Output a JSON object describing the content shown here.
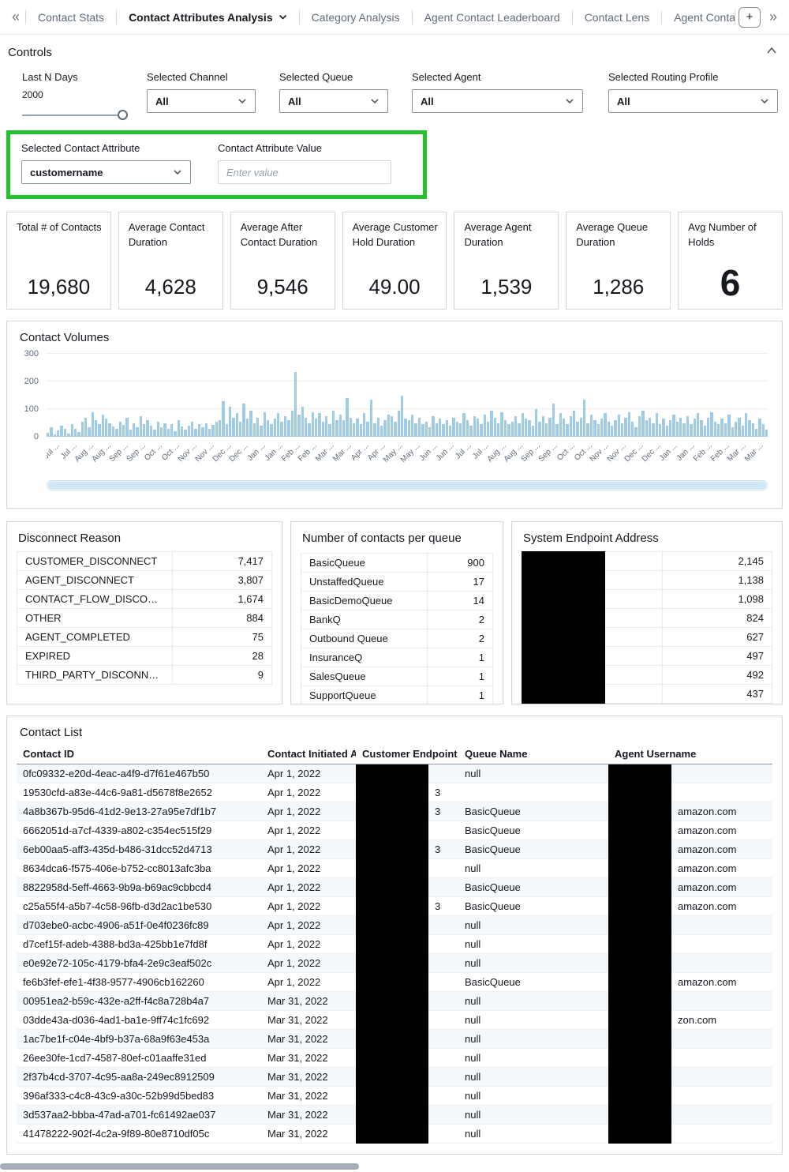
{
  "colors": {
    "accent_green": "#26c22d",
    "bar_blue": "#9fcbe5",
    "scrollbar_blue": "#cfe6f5"
  },
  "icons": {
    "scroll_tabs_left": "«",
    "scroll_tabs_right": "»",
    "add_sheet": "+"
  },
  "tabbar": {
    "tabs": [
      {
        "label": "Contact Stats",
        "active": false
      },
      {
        "label": "Contact Attributes Analysis",
        "active": true
      },
      {
        "label": "Category Analysis",
        "active": false
      },
      {
        "label": "Agent Contact Leaderboard",
        "active": false
      },
      {
        "label": "Contact Lens",
        "active": false
      },
      {
        "label": "Agent ContactLens",
        "active": false
      }
    ]
  },
  "controls": {
    "title": "Controls",
    "last_n_days": {
      "label": "Last N Days",
      "value": "2000"
    },
    "channel": {
      "label": "Selected Channel",
      "value": "All"
    },
    "queue": {
      "label": "Selected Queue",
      "value": "All"
    },
    "agent": {
      "label": "Selected Agent",
      "value": "All"
    },
    "routing_profile": {
      "label": "Selected Routing Profile",
      "value": "All"
    },
    "contact_attribute": {
      "label": "Selected Contact Attribute",
      "value": "customername"
    },
    "attribute_value": {
      "label": "Contact Attribute Value",
      "placeholder": "Enter value"
    }
  },
  "kpis": [
    {
      "title": "Total # of Contacts",
      "value": "19,680",
      "emphasis": false
    },
    {
      "title": "Average Contact Duration",
      "value": "4,628",
      "emphasis": false
    },
    {
      "title": "Average After Contact Duration",
      "value": "9,546",
      "emphasis": false
    },
    {
      "title": "Average Customer Hold Duration",
      "value": "49.00",
      "emphasis": false
    },
    {
      "title": "Average Agent Duration",
      "value": "1,539",
      "emphasis": false
    },
    {
      "title": "Average Queue Duration",
      "value": "1,286",
      "emphasis": false
    },
    {
      "title": "Avg Number of Holds",
      "value": "6",
      "emphasis": true
    }
  ],
  "chart_data": {
    "type": "bar",
    "title": "Contact Volumes",
    "xlabel": "",
    "ylabel": "",
    "ylim": [
      0,
      300
    ],
    "yticks": [
      0,
      100,
      200,
      300
    ],
    "grid": true,
    "legend": "none",
    "x_tick_labels": [
      "Jul ...",
      "Jul ...",
      "Aug ...",
      "Aug ...",
      "Sep ...",
      "Sep ...",
      "Oct ...",
      "Oct ...",
      "Nov ...",
      "Nov ...",
      "Dec ...",
      "Dec ...",
      "Jan ...",
      "Jan ...",
      "Feb ...",
      "Feb ...",
      "Mar ...",
      "Mar ...",
      "Apr ...",
      "Apr ...",
      "May ...",
      "May ...",
      "Jun ...",
      "Jun ...",
      "Jul ...",
      "Jul ...",
      "Aug ...",
      "Aug ...",
      "Sep ...",
      "Sep ...",
      "Oct ...",
      "Oct ...",
      "Nov ...",
      "Nov ...",
      "Dec ...",
      "Dec ...",
      "Jan ...",
      "Jan ...",
      "Feb ...",
      "Feb ...",
      "Mar ...",
      "Mar ..."
    ],
    "values": [
      15,
      35,
      8,
      22,
      40,
      28,
      12,
      45,
      30,
      18,
      55,
      70,
      35,
      90,
      60,
      45,
      80,
      65,
      50,
      38,
      30,
      55,
      42,
      68,
      25,
      50,
      35,
      75,
      45,
      60,
      40,
      25,
      55,
      35,
      48,
      30,
      45,
      20,
      60,
      38,
      25,
      40,
      55,
      30,
      45,
      35,
      50,
      28,
      42,
      55,
      60,
      130,
      45,
      110,
      70,
      85,
      55,
      120,
      65,
      95,
      50,
      70,
      40,
      90,
      60,
      45,
      65,
      85,
      55,
      75,
      60,
      95,
      235,
      80,
      110,
      70,
      50,
      90,
      65,
      85,
      55,
      75,
      45,
      95,
      60,
      80,
      60,
      140,
      70,
      50,
      65,
      45,
      85,
      55,
      135,
      50,
      70,
      40,
      60,
      80,
      75,
      55,
      95,
      150,
      65,
      60,
      80,
      50,
      70,
      45,
      55,
      35,
      75,
      50,
      65,
      45,
      60,
      40,
      70,
      55,
      50,
      85,
      60,
      40,
      75,
      65,
      45,
      80,
      55,
      95,
      70,
      50,
      90,
      60,
      45,
      55,
      75,
      48,
      85,
      65,
      60,
      40,
      100,
      55,
      75,
      50,
      70,
      120,
      45,
      85,
      65,
      45,
      75,
      95,
      55,
      70,
      135,
      50,
      80,
      60,
      45,
      65,
      85,
      55,
      40,
      60,
      80,
      50,
      70,
      90,
      55,
      35,
      75,
      95,
      60,
      70,
      50,
      85,
      45,
      65,
      40,
      60,
      80,
      55,
      70,
      50,
      75,
      45,
      65,
      85,
      60,
      40,
      70,
      90,
      55,
      45,
      65,
      50,
      80,
      35,
      55,
      70,
      40,
      85,
      60,
      50,
      30,
      65,
      45,
      25
    ]
  },
  "disconnect_reason": {
    "title": "Disconnect Reason",
    "rows": [
      [
        "CUSTOMER_DISCONNECT",
        "7,417"
      ],
      [
        "AGENT_DISCONNECT",
        "3,807"
      ],
      [
        "CONTACT_FLOW_DISCONN...",
        "1,674"
      ],
      [
        "OTHER",
        "884"
      ],
      [
        "AGENT_COMPLETED",
        "75"
      ],
      [
        "EXPIRED",
        "28"
      ],
      [
        "THIRD_PARTY_DISCONNECT",
        "9"
      ]
    ]
  },
  "contacts_per_queue": {
    "title": "Number of contacts per queue",
    "rows": [
      [
        "BasicQueue",
        "900"
      ],
      [
        "UnstaffedQueue",
        "17"
      ],
      [
        "BasicDemoQueue",
        "14"
      ],
      [
        "BankQ",
        "2"
      ],
      [
        "Outbound Queue",
        "2"
      ],
      [
        "InsuranceQ",
        "1"
      ],
      [
        "SalesQueue",
        "1"
      ],
      [
        "SupportQueue",
        "1"
      ]
    ]
  },
  "system_endpoint": {
    "title": "System Endpoint Address",
    "values": [
      "2,145",
      "1,138",
      "1,098",
      "824",
      "627",
      "497",
      "492",
      "437"
    ]
  },
  "contact_list": {
    "title": "Contact List",
    "columns": [
      "Contact ID",
      "Contact Initiated At",
      "Customer Endpoint",
      "Queue Name",
      "Agent Username"
    ],
    "rows": [
      {
        "contact_id": "0fc09332-e20d-4eac-a4f9-d7f61e467b50",
        "initiated_at": "Apr 1, 2022",
        "customer_endpoint_visible": "",
        "queue_name": "null",
        "agent_username_visible": ""
      },
      {
        "contact_id": "19530cfd-a83e-44c6-9a81-d5678f8e2652",
        "initiated_at": "Apr 1, 2022",
        "customer_endpoint_visible": "3",
        "queue_name": "",
        "agent_username_visible": ""
      },
      {
        "contact_id": "4a8b367b-95d6-41d2-9e13-27a95e7df1b7",
        "initiated_at": "Apr 1, 2022",
        "customer_endpoint_visible": "3",
        "queue_name": "BasicQueue",
        "agent_username_visible": "amazon.com"
      },
      {
        "contact_id": "6662051d-a7cf-4339-a802-c354ec515f29",
        "initiated_at": "Apr 1, 2022",
        "customer_endpoint_visible": "",
        "queue_name": "BasicQueue",
        "agent_username_visible": "amazon.com"
      },
      {
        "contact_id": "6eb00aa5-aff3-435d-b486-31dcc52d4713",
        "initiated_at": "Apr 1, 2022",
        "customer_endpoint_visible": "3",
        "queue_name": "BasicQueue",
        "agent_username_visible": "amazon.com"
      },
      {
        "contact_id": "8634dca6-f575-406e-b752-cc8013afc3ba",
        "initiated_at": "Apr 1, 2022",
        "customer_endpoint_visible": "",
        "queue_name": "null",
        "agent_username_visible": "amazon.com"
      },
      {
        "contact_id": "8822958d-5eff-4663-9b9a-b69ac9cbbcd4",
        "initiated_at": "Apr 1, 2022",
        "customer_endpoint_visible": "",
        "queue_name": "BasicQueue",
        "agent_username_visible": "amazon.com"
      },
      {
        "contact_id": "c25a55f4-a5b7-4c58-96fb-d3d2ac1be530",
        "initiated_at": "Apr 1, 2022",
        "customer_endpoint_visible": "3",
        "queue_name": "BasicQueue",
        "agent_username_visible": "amazon.com"
      },
      {
        "contact_id": "d703ebe0-acbc-4906-a51f-0e4f0236fc89",
        "initiated_at": "Apr 1, 2022",
        "customer_endpoint_visible": "",
        "queue_name": "null",
        "agent_username_visible": ""
      },
      {
        "contact_id": "d7cef15f-adeb-4388-bd3a-425bb1e7fd8f",
        "initiated_at": "Apr 1, 2022",
        "customer_endpoint_visible": "",
        "queue_name": "null",
        "agent_username_visible": ""
      },
      {
        "contact_id": "e0e92e72-105c-4179-bfa4-2e9c3eaf502c",
        "initiated_at": "Apr 1, 2022",
        "customer_endpoint_visible": "",
        "queue_name": "null",
        "agent_username_visible": ""
      },
      {
        "contact_id": "fe6b3fef-efe1-4f38-9577-4906cb162260",
        "initiated_at": "Apr 1, 2022",
        "customer_endpoint_visible": "",
        "queue_name": "BasicQueue",
        "agent_username_visible": "amazon.com"
      },
      {
        "contact_id": "00951ea2-b59c-432e-a2ff-f4c8a728b4a7",
        "initiated_at": "Mar 31, 2022",
        "customer_endpoint_visible": "",
        "queue_name": "null",
        "agent_username_visible": ""
      },
      {
        "contact_id": "03dde43a-d036-4ad1-ba1e-9ff74c1fc692",
        "initiated_at": "Mar 31, 2022",
        "customer_endpoint_visible": "",
        "queue_name": "null",
        "agent_username_visible": "zon.com"
      },
      {
        "contact_id": "1ac7be1f-c04e-4bf9-b37a-68a9f63e453a",
        "initiated_at": "Mar 31, 2022",
        "customer_endpoint_visible": "",
        "queue_name": "null",
        "agent_username_visible": ""
      },
      {
        "contact_id": "26ee30fe-1cd7-4587-80ef-c01aaffe31ed",
        "initiated_at": "Mar 31, 2022",
        "customer_endpoint_visible": "",
        "queue_name": "null",
        "agent_username_visible": ""
      },
      {
        "contact_id": "2f37b4cd-3707-4c95-aa8a-249ec8912509",
        "initiated_at": "Mar 31, 2022",
        "customer_endpoint_visible": "",
        "queue_name": "null",
        "agent_username_visible": ""
      },
      {
        "contact_id": "396af333-c4c8-43c9-a30c-52b99d5bed83",
        "initiated_at": "Mar 31, 2022",
        "customer_endpoint_visible": "",
        "queue_name": "null",
        "agent_username_visible": ""
      },
      {
        "contact_id": "3d537aa2-bbba-47ad-a701-fc61492ae037",
        "initiated_at": "Mar 31, 2022",
        "customer_endpoint_visible": "",
        "queue_name": "null",
        "agent_username_visible": ""
      },
      {
        "contact_id": "41478222-902f-4c2a-9f89-80e8710df05c",
        "initiated_at": "Mar 31, 2022",
        "customer_endpoint_visible": "",
        "queue_name": "null",
        "agent_username_visible": ""
      }
    ]
  }
}
